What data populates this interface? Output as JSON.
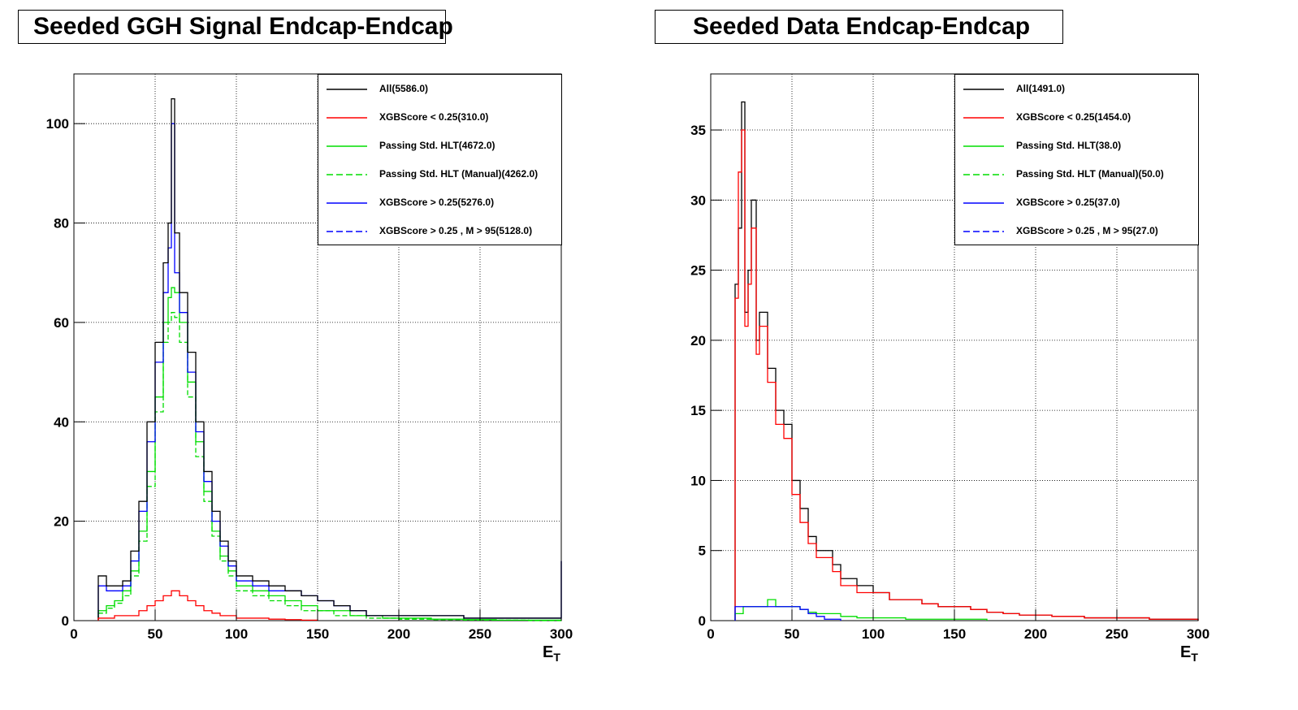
{
  "chart_data": [
    {
      "type": "line",
      "title": "Seeded GGH Signal Endcap-Endcap",
      "xlabel_main": "E",
      "xlabel_sub": "T",
      "ylabel": "",
      "xlim": [
        0,
        300
      ],
      "ylim": [
        0,
        110
      ],
      "xticks": [
        0,
        50,
        100,
        150,
        200,
        250,
        300
      ],
      "yticks": [
        0,
        20,
        40,
        60,
        80,
        100
      ],
      "grid": true,
      "legend_position": "top-right",
      "legend": [
        {
          "label": "All(5586.0)",
          "color": "#000000",
          "dash": "solid"
        },
        {
          "label": "XGBScore < 0.25(310.0)",
          "color": "#ff0000",
          "dash": "solid"
        },
        {
          "label": "Passing Std. HLT(4672.0)",
          "color": "#00dd00",
          "dash": "solid"
        },
        {
          "label": "Passing Std. HLT (Manual)(4262.0)",
          "color": "#00dd00",
          "dash": "dashed"
        },
        {
          "label": "XGBScore > 0.25(5276.0)",
          "color": "#0000ff",
          "dash": "solid"
        },
        {
          "label": "XGBScore > 0.25 , M > 95(5128.0)",
          "color": "#0000ff",
          "dash": "dashed"
        }
      ],
      "series": [
        {
          "color": "#00dd00",
          "dash": "solid",
          "x": [
            15,
            20,
            25,
            30,
            35,
            40,
            45,
            50,
            55,
            58,
            60,
            62,
            65,
            70,
            75,
            80,
            85,
            90,
            95,
            100,
            110,
            120,
            130,
            140,
            150,
            160,
            170,
            180,
            190,
            200,
            220,
            240,
            260,
            280,
            300
          ],
          "y": [
            2,
            3,
            4,
            6,
            10,
            18,
            30,
            45,
            60,
            65,
            67,
            66,
            60,
            48,
            36,
            26,
            18,
            13,
            10,
            7,
            6,
            5,
            4,
            3,
            2,
            2,
            1,
            1,
            0.5,
            0.5,
            0.3,
            0.2,
            0.1,
            0.1,
            0
          ]
        },
        {
          "color": "#00dd00",
          "dash": "dashed",
          "x": [
            15,
            20,
            25,
            30,
            35,
            40,
            45,
            50,
            55,
            58,
            60,
            62,
            65,
            70,
            75,
            80,
            85,
            90,
            95,
            100,
            110,
            120,
            130,
            140,
            150,
            160,
            170,
            180,
            190,
            200,
            220,
            240,
            260,
            280,
            300
          ],
          "y": [
            1.5,
            2.5,
            3.5,
            5,
            9,
            16,
            27,
            42,
            56,
            60,
            62,
            61,
            56,
            45,
            33,
            24,
            17,
            12,
            9,
            6,
            5,
            4,
            3,
            2,
            2,
            1,
            1,
            0.5,
            0.5,
            0.3,
            0.2,
            0.1,
            0.1,
            0,
            0
          ]
        },
        {
          "color": "#0000ff",
          "dash": "solid",
          "x": [
            15,
            20,
            25,
            30,
            35,
            40,
            45,
            50,
            55,
            58,
            60,
            62,
            65,
            70,
            75,
            80,
            85,
            90,
            95,
            100,
            110,
            120,
            130,
            140,
            150,
            160,
            170,
            180,
            190,
            200,
            220,
            240,
            260,
            280,
            300
          ],
          "y": [
            7,
            6,
            6,
            7,
            12,
            22,
            36,
            52,
            66,
            75,
            100,
            70,
            62,
            50,
            38,
            28,
            20,
            15,
            11,
            8,
            7,
            6,
            6,
            5,
            4,
            3,
            2,
            1,
            1,
            1,
            1,
            0.5,
            0.5,
            0.5,
            12
          ]
        },
        {
          "color": "#000000",
          "dash": "solid",
          "x": [
            15,
            20,
            25,
            30,
            35,
            40,
            45,
            50,
            55,
            58,
            60,
            62,
            65,
            70,
            75,
            80,
            85,
            90,
            95,
            100,
            110,
            120,
            130,
            140,
            150,
            160,
            170,
            180,
            190,
            200,
            220,
            240,
            260,
            280,
            300
          ],
          "y": [
            9,
            7,
            7,
            8,
            14,
            24,
            40,
            56,
            72,
            80,
            105,
            78,
            66,
            54,
            40,
            30,
            22,
            16,
            12,
            9,
            8,
            7,
            6,
            5,
            4,
            3,
            2,
            1,
            1,
            1,
            1,
            0.5,
            0.5,
            0.5,
            12
          ]
        },
        {
          "color": "#ff0000",
          "dash": "solid",
          "x": [
            15,
            20,
            25,
            30,
            35,
            40,
            45,
            50,
            55,
            60,
            65,
            70,
            75,
            80,
            85,
            90,
            95,
            100,
            110,
            120,
            130,
            140,
            150
          ],
          "y": [
            0.5,
            0.5,
            1,
            1,
            1,
            2,
            3,
            4,
            5,
            6,
            5,
            4,
            3,
            2,
            1.5,
            1,
            1,
            0.5,
            0.5,
            0.3,
            0.2,
            0.1,
            0
          ]
        }
      ]
    },
    {
      "type": "line",
      "title": "Seeded Data Endcap-Endcap",
      "xlabel_main": "E",
      "xlabel_sub": "T",
      "ylabel": "",
      "xlim": [
        0,
        300
      ],
      "ylim": [
        0,
        39
      ],
      "xticks": [
        0,
        50,
        100,
        150,
        200,
        250,
        300
      ],
      "yticks": [
        0,
        5,
        10,
        15,
        20,
        25,
        30,
        35
      ],
      "grid": true,
      "legend_position": "top-right",
      "legend": [
        {
          "label": "All(1491.0)",
          "color": "#000000",
          "dash": "solid"
        },
        {
          "label": "XGBScore < 0.25(1454.0)",
          "color": "#ff0000",
          "dash": "solid"
        },
        {
          "label": "Passing Std. HLT(38.0)",
          "color": "#00dd00",
          "dash": "solid"
        },
        {
          "label": "Passing Std. HLT (Manual)(50.0)",
          "color": "#00dd00",
          "dash": "dashed"
        },
        {
          "label": "XGBScore > 0.25(37.0)",
          "color": "#0000ff",
          "dash": "solid"
        },
        {
          "label": "XGBScore > 0.25 , M > 95(27.0)",
          "color": "#0000ff",
          "dash": "dashed"
        }
      ],
      "series": [
        {
          "color": "#000000",
          "dash": "solid",
          "x": [
            15,
            17,
            19,
            21,
            23,
            25,
            28,
            30,
            35,
            40,
            45,
            50,
            55,
            60,
            65,
            70,
            75,
            80,
            90,
            100,
            110,
            120,
            130,
            140,
            150,
            160,
            170,
            180,
            190,
            200,
            210,
            230,
            250,
            270,
            300
          ],
          "y": [
            24,
            28,
            37,
            22,
            25,
            30,
            20,
            22,
            18,
            15,
            14,
            10,
            8,
            6,
            5,
            5,
            4,
            3,
            2.5,
            2,
            1.5,
            1.5,
            1.2,
            1,
            1,
            0.8,
            0.6,
            0.5,
            0.4,
            0.4,
            0.3,
            0.2,
            0.2,
            0.1,
            0
          ]
        },
        {
          "color": "#ff0000",
          "dash": "solid",
          "x": [
            15,
            17,
            19,
            21,
            23,
            25,
            28,
            30,
            35,
            40,
            45,
            50,
            55,
            60,
            65,
            70,
            75,
            80,
            90,
            100,
            110,
            120,
            130,
            140,
            150,
            160,
            170,
            180,
            190,
            200,
            210,
            230,
            250,
            270,
            300
          ],
          "y": [
            23,
            32,
            35,
            21,
            24,
            28,
            19,
            21,
            17,
            14,
            13,
            9,
            7,
            5.5,
            4.5,
            4.5,
            3.5,
            2.5,
            2,
            2,
            1.5,
            1.5,
            1.2,
            1,
            1,
            0.8,
            0.6,
            0.5,
            0.4,
            0.4,
            0.3,
            0.2,
            0.2,
            0.1,
            0
          ]
        },
        {
          "color": "#00dd00",
          "dash": "solid",
          "x": [
            15,
            20,
            25,
            30,
            35,
            40,
            45,
            50,
            55,
            60,
            65,
            70,
            80,
            90,
            100,
            120,
            140,
            160,
            170
          ],
          "y": [
            0.5,
            1,
            1,
            1,
            1.5,
            1,
            1,
            1,
            0.8,
            0.6,
            0.5,
            0.5,
            0.3,
            0.2,
            0.2,
            0.1,
            0.1,
            0.1,
            0
          ]
        },
        {
          "color": "#0000ff",
          "dash": "solid",
          "x": [
            15,
            20,
            25,
            30,
            35,
            40,
            45,
            50,
            55,
            60,
            65,
            70,
            80
          ],
          "y": [
            1,
            1,
            1,
            1,
            1,
            1,
            1,
            1,
            0.8,
            0.5,
            0.3,
            0.1,
            0
          ]
        }
      ]
    }
  ]
}
